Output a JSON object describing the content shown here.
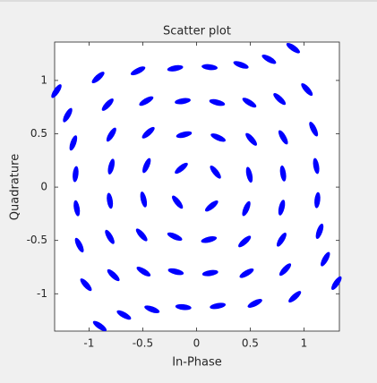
{
  "chart_data": {
    "type": "scatter",
    "title": "Scatter plot",
    "x_label": "In-Phase",
    "y_label": "Quadrature",
    "color": "#0000ff",
    "x": [
      0.177,
      0.492,
      0.806,
      1.114,
      0.202,
      0.51,
      0.807,
      1.09,
      0.192,
      0.492,
      0.773,
      1.028,
      0.122,
      0.414,
      0.675,
      0.9,
      -0.141,
      -0.116,
      -0.128,
      -0.198,
      -0.464,
      -0.448,
      -0.467,
      -0.544,
      -0.793,
      -0.792,
      -0.826,
      -0.915,
      -1.125,
      -1.146,
      -1.199,
      -1.303,
      -0.177,
      -0.492,
      -0.806,
      -1.114,
      -0.202,
      -0.51,
      -0.807,
      -1.09,
      -0.192,
      -0.492,
      -0.773,
      -1.028,
      -0.122,
      -0.414,
      -0.675,
      -0.9,
      0.141,
      0.116,
      0.128,
      0.198,
      0.464,
      0.448,
      0.467,
      0.544,
      0.793,
      0.792,
      0.826,
      0.915,
      1.125,
      1.146,
      1.199,
      1.303
    ],
    "values": [
      0.141,
      0.116,
      0.128,
      0.198,
      0.464,
      0.448,
      0.467,
      0.544,
      0.793,
      0.792,
      0.826,
      0.915,
      1.125,
      1.146,
      1.199,
      1.303,
      0.177,
      0.492,
      0.806,
      1.114,
      0.202,
      0.51,
      0.807,
      1.09,
      0.192,
      0.492,
      0.773,
      1.028,
      0.122,
      0.414,
      0.675,
      0.9,
      -0.141,
      -0.116,
      -0.128,
      -0.198,
      -0.464,
      -0.448,
      -0.467,
      -0.544,
      -0.793,
      -0.792,
      -0.826,
      -0.915,
      -1.125,
      -1.146,
      -1.199,
      -1.303,
      -0.177,
      -0.492,
      -0.806,
      -1.114,
      -0.202,
      -0.51,
      -0.807,
      -1.09,
      -0.192,
      -0.492,
      -0.773,
      -1.028,
      -0.122,
      -0.414,
      -0.675,
      -0.9
    ],
    "xlim": [
      -1.32,
      1.33
    ],
    "ylim": [
      -1.35,
      1.36
    ],
    "xticks": [
      -1,
      -0.5,
      0,
      0.5,
      1
    ],
    "yticks": [
      -1,
      -0.5,
      0,
      0.5,
      1
    ]
  }
}
